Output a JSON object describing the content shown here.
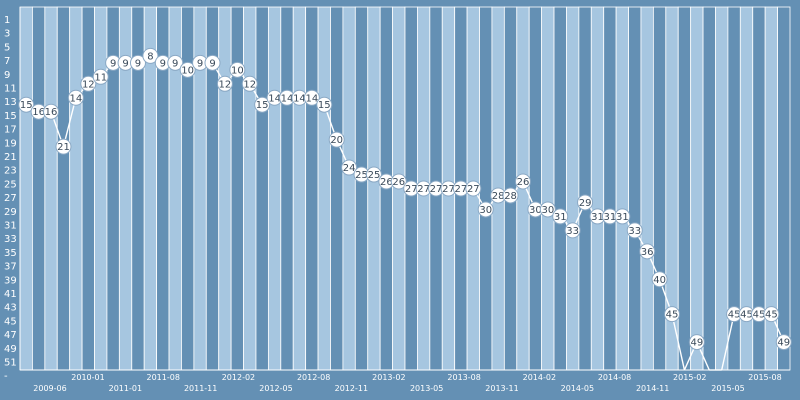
{
  "chart_data": {
    "type": "line",
    "ylim": [
      1,
      53
    ],
    "y_reversed": true,
    "y_ticks": [
      "1",
      "3",
      "5",
      "7",
      "9",
      "11",
      "13",
      "15",
      "17",
      "19",
      "21",
      "23",
      "25",
      "27",
      "29",
      "31",
      "33",
      "35",
      "37",
      "39",
      "41",
      "43",
      "45",
      "47",
      "49",
      "51",
      "-"
    ],
    "x_tick_labels_upper": [
      "2010-01",
      "2011-08",
      "2012-02",
      "2012-08",
      "2013-02",
      "2013-08",
      "2014-02",
      "2014-08",
      "2015-02",
      "2015-08"
    ],
    "x_tick_labels_lower": [
      "2009-06",
      "2011-01",
      "2011-11",
      "2012-05",
      "2012-11",
      "2013-05",
      "2013-11",
      "2014-05",
      "2014-11",
      "2015-05"
    ],
    "series": [
      {
        "values": [
          15,
          16,
          16,
          21,
          14,
          12,
          11,
          9,
          9,
          9,
          8,
          9,
          9,
          10,
          9,
          9,
          12,
          10,
          12,
          15,
          14,
          14,
          14,
          14,
          15,
          20,
          24,
          25,
          25,
          26,
          26,
          27,
          27,
          27,
          27,
          27,
          27,
          30,
          28,
          28,
          26,
          30,
          30,
          31,
          33,
          29,
          31,
          31,
          31,
          33,
          36,
          40,
          45,
          null,
          49,
          null,
          null,
          45,
          45,
          45,
          45,
          49
        ]
      }
    ],
    "colors": {
      "background": "#6490b4",
      "bar_light": "#a6c6e0",
      "bar_dark": "#6490b4",
      "line": "#ffffff",
      "marker_fill": "#ffffff",
      "label_text": "#3a4a5a"
    }
  }
}
